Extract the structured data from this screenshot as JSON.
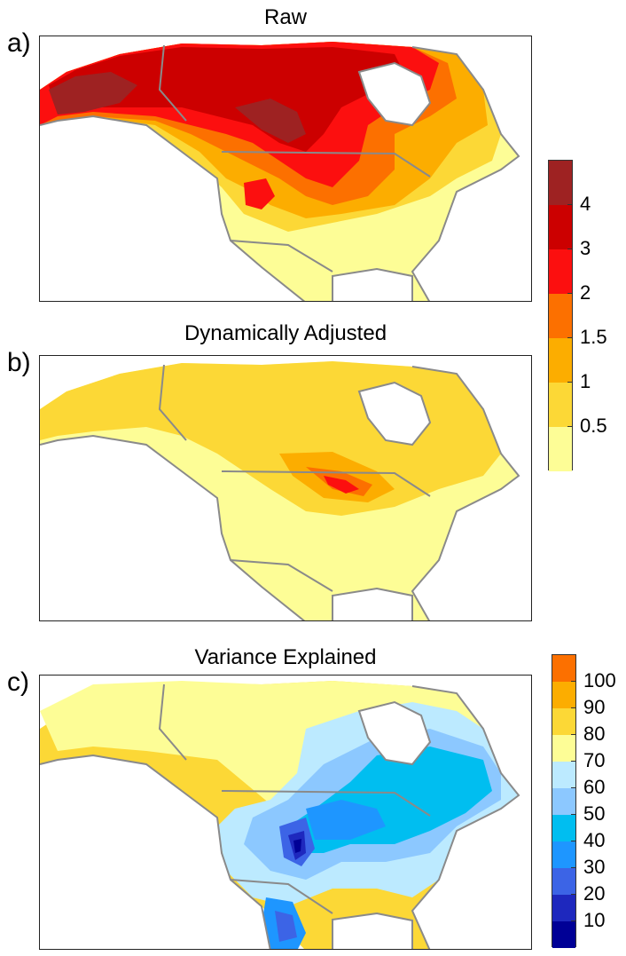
{
  "panels": [
    {
      "label": "a)",
      "title": "Raw"
    },
    {
      "label": "b)",
      "title": "Dynamically Adjusted"
    },
    {
      "label": "c)",
      "title": "Variance Explained"
    }
  ],
  "colorbar_temp": {
    "colors": [
      "#fdfd96",
      "#fcd836",
      "#fcad00",
      "#fc7000",
      "#fc0f0f",
      "#cc0000",
      "#9e2222"
    ],
    "labels": [
      "0.5",
      "1",
      "1.5",
      "2",
      "3",
      "4"
    ]
  },
  "colorbar_var": {
    "colors": [
      "#000096",
      "#1e28be",
      "#3c64e6",
      "#1e96ff",
      "#00bef0",
      "#8cc8ff",
      "#bceaff",
      "#fdfd96",
      "#fcd836",
      "#fcad00",
      "#fc7000"
    ],
    "labels": [
      "10",
      "20",
      "30",
      "40",
      "50",
      "60",
      "70",
      "80",
      "90",
      "100"
    ]
  },
  "colors": {
    "land_outline": "#8a8a8a",
    "border": "#8a8a8a"
  }
}
